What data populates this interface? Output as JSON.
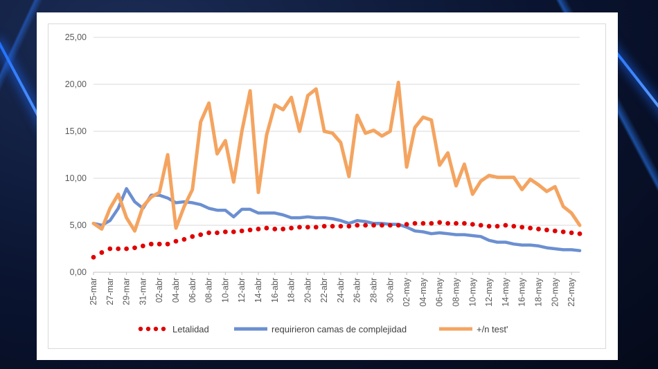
{
  "chart_data": {
    "type": "line",
    "title": "",
    "xlabel": "",
    "ylabel": "",
    "ylim": [
      0,
      25
    ],
    "yticks": [
      "0,00",
      "5,00",
      "10,00",
      "15,00",
      "20,00",
      "25,00"
    ],
    "grid": true,
    "legend_position": "bottom",
    "x_labels_shown": [
      "25-mar",
      "27-mar",
      "29-mar",
      "31-mar",
      "02-abr",
      "04-abr",
      "06-abr",
      "08-abr",
      "10-abr",
      "12-abr",
      "14-abr",
      "16-abr",
      "18-abr",
      "20-abr",
      "22-abr",
      "24-abr",
      "26-abr",
      "28-abr",
      "30-abr",
      "02-may",
      "04-may",
      "06-may",
      "08-may",
      "10-may",
      "12-may",
      "14-may",
      "16-may",
      "18-may",
      "20-may",
      "22-may"
    ],
    "series": [
      {
        "name": "Letalidad",
        "style": "dotted",
        "color": "#e00000",
        "values": [
          1.6,
          2.1,
          2.5,
          2.5,
          2.5,
          2.6,
          2.8,
          3.0,
          3.0,
          3.0,
          3.3,
          3.5,
          3.8,
          4.0,
          4.2,
          4.2,
          4.3,
          4.3,
          4.4,
          4.5,
          4.6,
          4.7,
          4.6,
          4.6,
          4.7,
          4.8,
          4.8,
          4.8,
          4.9,
          4.9,
          4.9,
          4.9,
          5.0,
          5.0,
          5.0,
          5.0,
          5.0,
          5.0,
          5.1,
          5.2,
          5.2,
          5.2,
          5.3,
          5.2,
          5.2,
          5.2,
          5.1,
          5.0,
          4.9,
          4.9,
          5.0,
          4.9,
          4.8,
          4.7,
          4.6,
          4.5,
          4.4,
          4.3,
          4.2,
          4.1
        ]
      },
      {
        "name": "requirieron camas de complejidad",
        "style": "solid",
        "color": "#6b8fd1",
        "values": [
          5.2,
          5.0,
          5.5,
          6.8,
          8.9,
          7.5,
          6.8,
          8.2,
          8.2,
          7.9,
          7.4,
          7.5,
          7.4,
          7.2,
          6.8,
          6.6,
          6.6,
          5.9,
          6.7,
          6.7,
          6.3,
          6.3,
          6.3,
          6.1,
          5.8,
          5.8,
          5.9,
          5.8,
          5.8,
          5.7,
          5.5,
          5.2,
          5.5,
          5.4,
          5.2,
          5.2,
          5.1,
          5.1,
          4.8,
          4.4,
          4.3,
          4.1,
          4.2,
          4.1,
          4.0,
          4.0,
          3.9,
          3.8,
          3.4,
          3.2,
          3.2,
          3.0,
          2.9,
          2.9,
          2.8,
          2.6,
          2.5,
          2.4,
          2.4,
          2.3
        ]
      },
      {
        "name": "+/n test'",
        "style": "solid",
        "color": "#f4a460",
        "values": [
          5.2,
          4.6,
          6.8,
          8.3,
          5.8,
          4.4,
          7.0,
          8.0,
          8.5,
          12.5,
          4.7,
          7.0,
          8.8,
          16.0,
          18.0,
          12.6,
          14.0,
          9.6,
          15.0,
          19.3,
          8.5,
          14.6,
          17.8,
          17.3,
          18.6,
          15.0,
          18.8,
          19.5,
          15.0,
          14.8,
          13.8,
          10.2,
          16.7,
          14.8,
          15.1,
          14.5,
          15.0,
          20.2,
          11.2,
          15.4,
          16.5,
          16.2,
          11.4,
          12.7,
          9.2,
          11.5,
          8.3,
          9.7,
          10.3,
          10.1,
          10.1,
          10.1,
          8.8,
          9.9,
          9.3,
          8.6,
          9.1,
          7.0,
          6.3,
          5.0
        ]
      }
    ]
  }
}
